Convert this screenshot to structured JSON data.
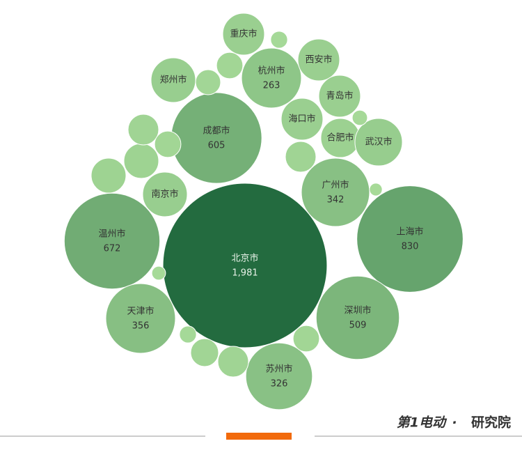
{
  "chart_data": {
    "type": "bubble",
    "categories": [
      "北京市",
      "上海市",
      "温州市",
      "成都市",
      "深圳市",
      "天津市",
      "广州市",
      "苏州市",
      "杭州市",
      "郑州市",
      "重庆市",
      "西安市",
      "青岛市",
      "海口市",
      "合肥市",
      "武汉市",
      "南京市",
      null,
      null,
      null,
      null,
      null,
      null,
      null,
      null,
      null,
      null,
      null,
      null,
      null,
      null,
      null
    ],
    "values": [
      1981,
      830,
      672,
      605,
      509,
      356,
      342,
      326,
      263,
      146,
      128,
      128,
      128,
      128,
      112,
      165,
      146,
      89,
      89,
      69,
      51,
      51,
      46,
      21,
      69,
      57,
      69,
      51,
      17,
      21,
      14,
      12
    ],
    "value_labels": [
      "1,981",
      "830",
      "672",
      "605",
      "509",
      "356",
      "342",
      "326",
      "263",
      null,
      null,
      null,
      null,
      null,
      null,
      null,
      null,
      null,
      null,
      null,
      null,
      null,
      null,
      null,
      null,
      null,
      null,
      null,
      null,
      null,
      null,
      null
    ],
    "color_scale": [
      "#a9dc9a",
      "#236b3f"
    ],
    "footer": {
      "logo": "第1电动",
      "separator": "·",
      "text": "研究院"
    }
  }
}
